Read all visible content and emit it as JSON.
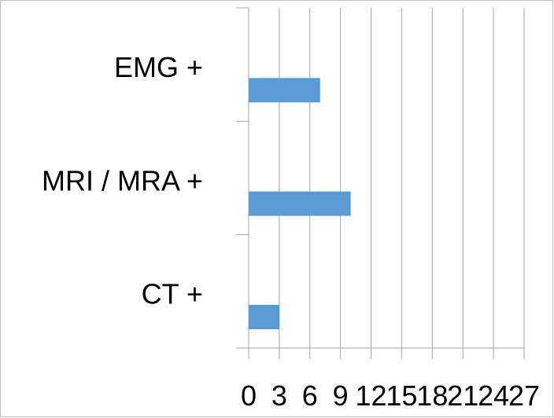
{
  "chart_data": {
    "type": "bar",
    "orientation": "horizontal",
    "categories": [
      "EMG +",
      "MRI / MRA +",
      "CT +"
    ],
    "values": [
      7,
      10,
      3
    ],
    "title": "",
    "xlabel": "",
    "ylabel": "",
    "xlim": [
      0,
      27
    ],
    "xticks": [
      "0",
      "3",
      "6",
      "9",
      "12",
      "15",
      "18",
      "21",
      "24",
      "27"
    ],
    "grid": "vertical",
    "legend": "none",
    "bar_color": "#5B9BD5",
    "grid_color": "#A6A6A6",
    "axis_color": "#A6A6A6"
  }
}
